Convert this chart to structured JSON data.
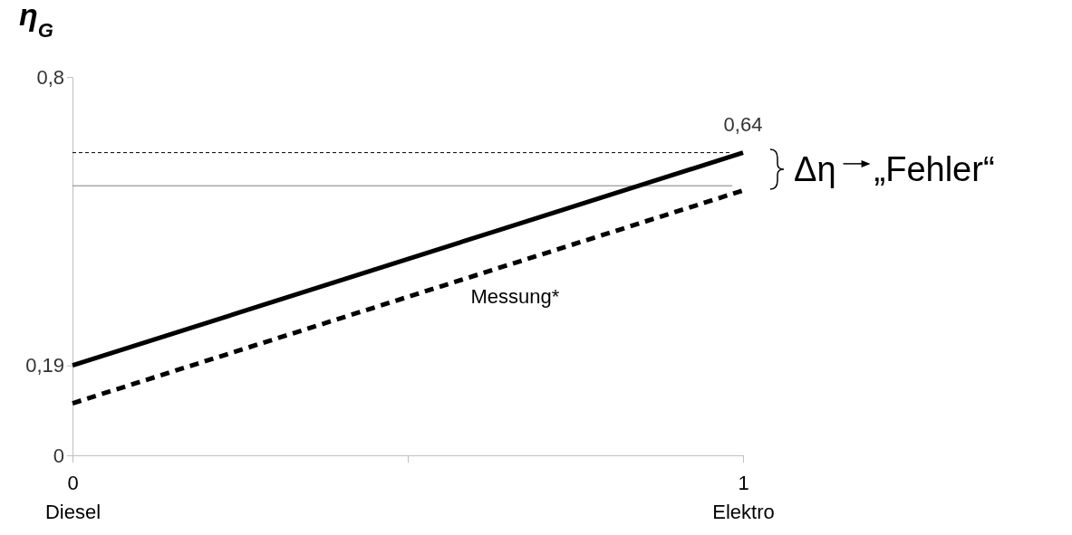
{
  "chart_data": {
    "type": "line",
    "ylabel": "η$_{G}$",
    "x": [
      0,
      1
    ],
    "xlim": [
      0,
      1
    ],
    "xticks": [
      {
        "value": 0,
        "label": "0\nDiesel"
      },
      {
        "value": 0.5,
        "label": null
      },
      {
        "value": 1,
        "label": "1\nElektro"
      }
    ],
    "ylim": [
      0,
      0.8
    ],
    "yticks": [
      0,
      {
        "value": 0.19,
        "label": "0,19"
      },
      {
        "value": 0.8,
        "label": "0,8"
      }
    ],
    "series": [
      {
        "color": "#000000",
        "values": [
          0.19,
          0.64
        ],
        "line_style": "solid"
      },
      {
        "name": "Messung*",
        "color": "#000000",
        "values": [
          0.11,
          0.56
        ],
        "line_style": "dashed"
      }
    ],
    "ref_lines": [
      {
        "axis": "y",
        "value": 0.64,
        "color": "#000000",
        "line_style": "dashed"
      },
      {
        "axis": "y",
        "value": 0.57,
        "color": "#808080",
        "line_style": "solid"
      }
    ],
    "annotations": [
      {
        "text": "0,64",
        "x": 1,
        "y": 0.64
      },
      "Δη",
      "„Fehler“"
    ],
    "grid": false,
    "marker": "none"
  }
}
